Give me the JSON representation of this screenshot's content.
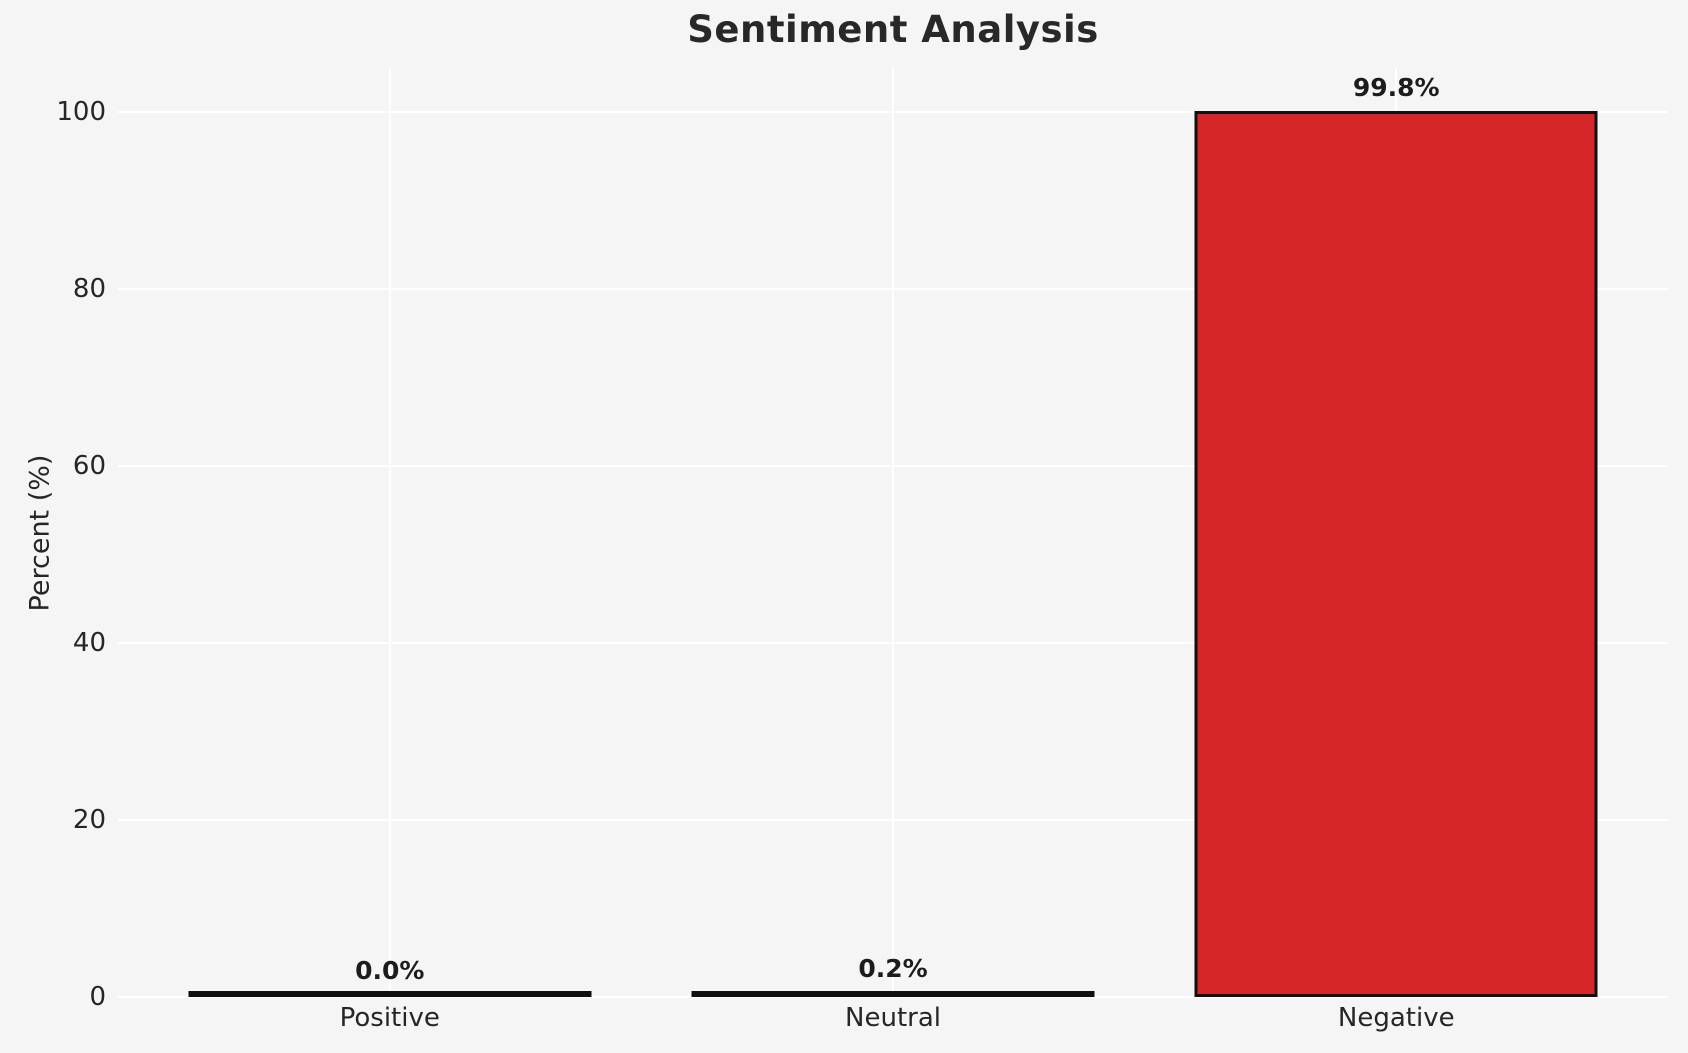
{
  "chart_data": {
    "type": "bar",
    "title": "Sentiment Analysis",
    "xlabel": "",
    "ylabel": "Percent (%)",
    "categories": [
      "Positive",
      "Neutral",
      "Negative"
    ],
    "values": [
      0.0,
      0.2,
      99.8
    ],
    "bar_labels": [
      "0.0%",
      "0.2%",
      "99.8%"
    ],
    "yticks": [
      0,
      20,
      40,
      60,
      80,
      100
    ],
    "ylim": [
      0,
      105
    ],
    "grid": true,
    "legend": "none",
    "colors": {
      "bar_fill": "#d62728",
      "bar_edge": "#101010",
      "background": "#f5f5f6",
      "gridline": "#ffffff",
      "text": "#262626",
      "title_text": "#282828"
    }
  }
}
